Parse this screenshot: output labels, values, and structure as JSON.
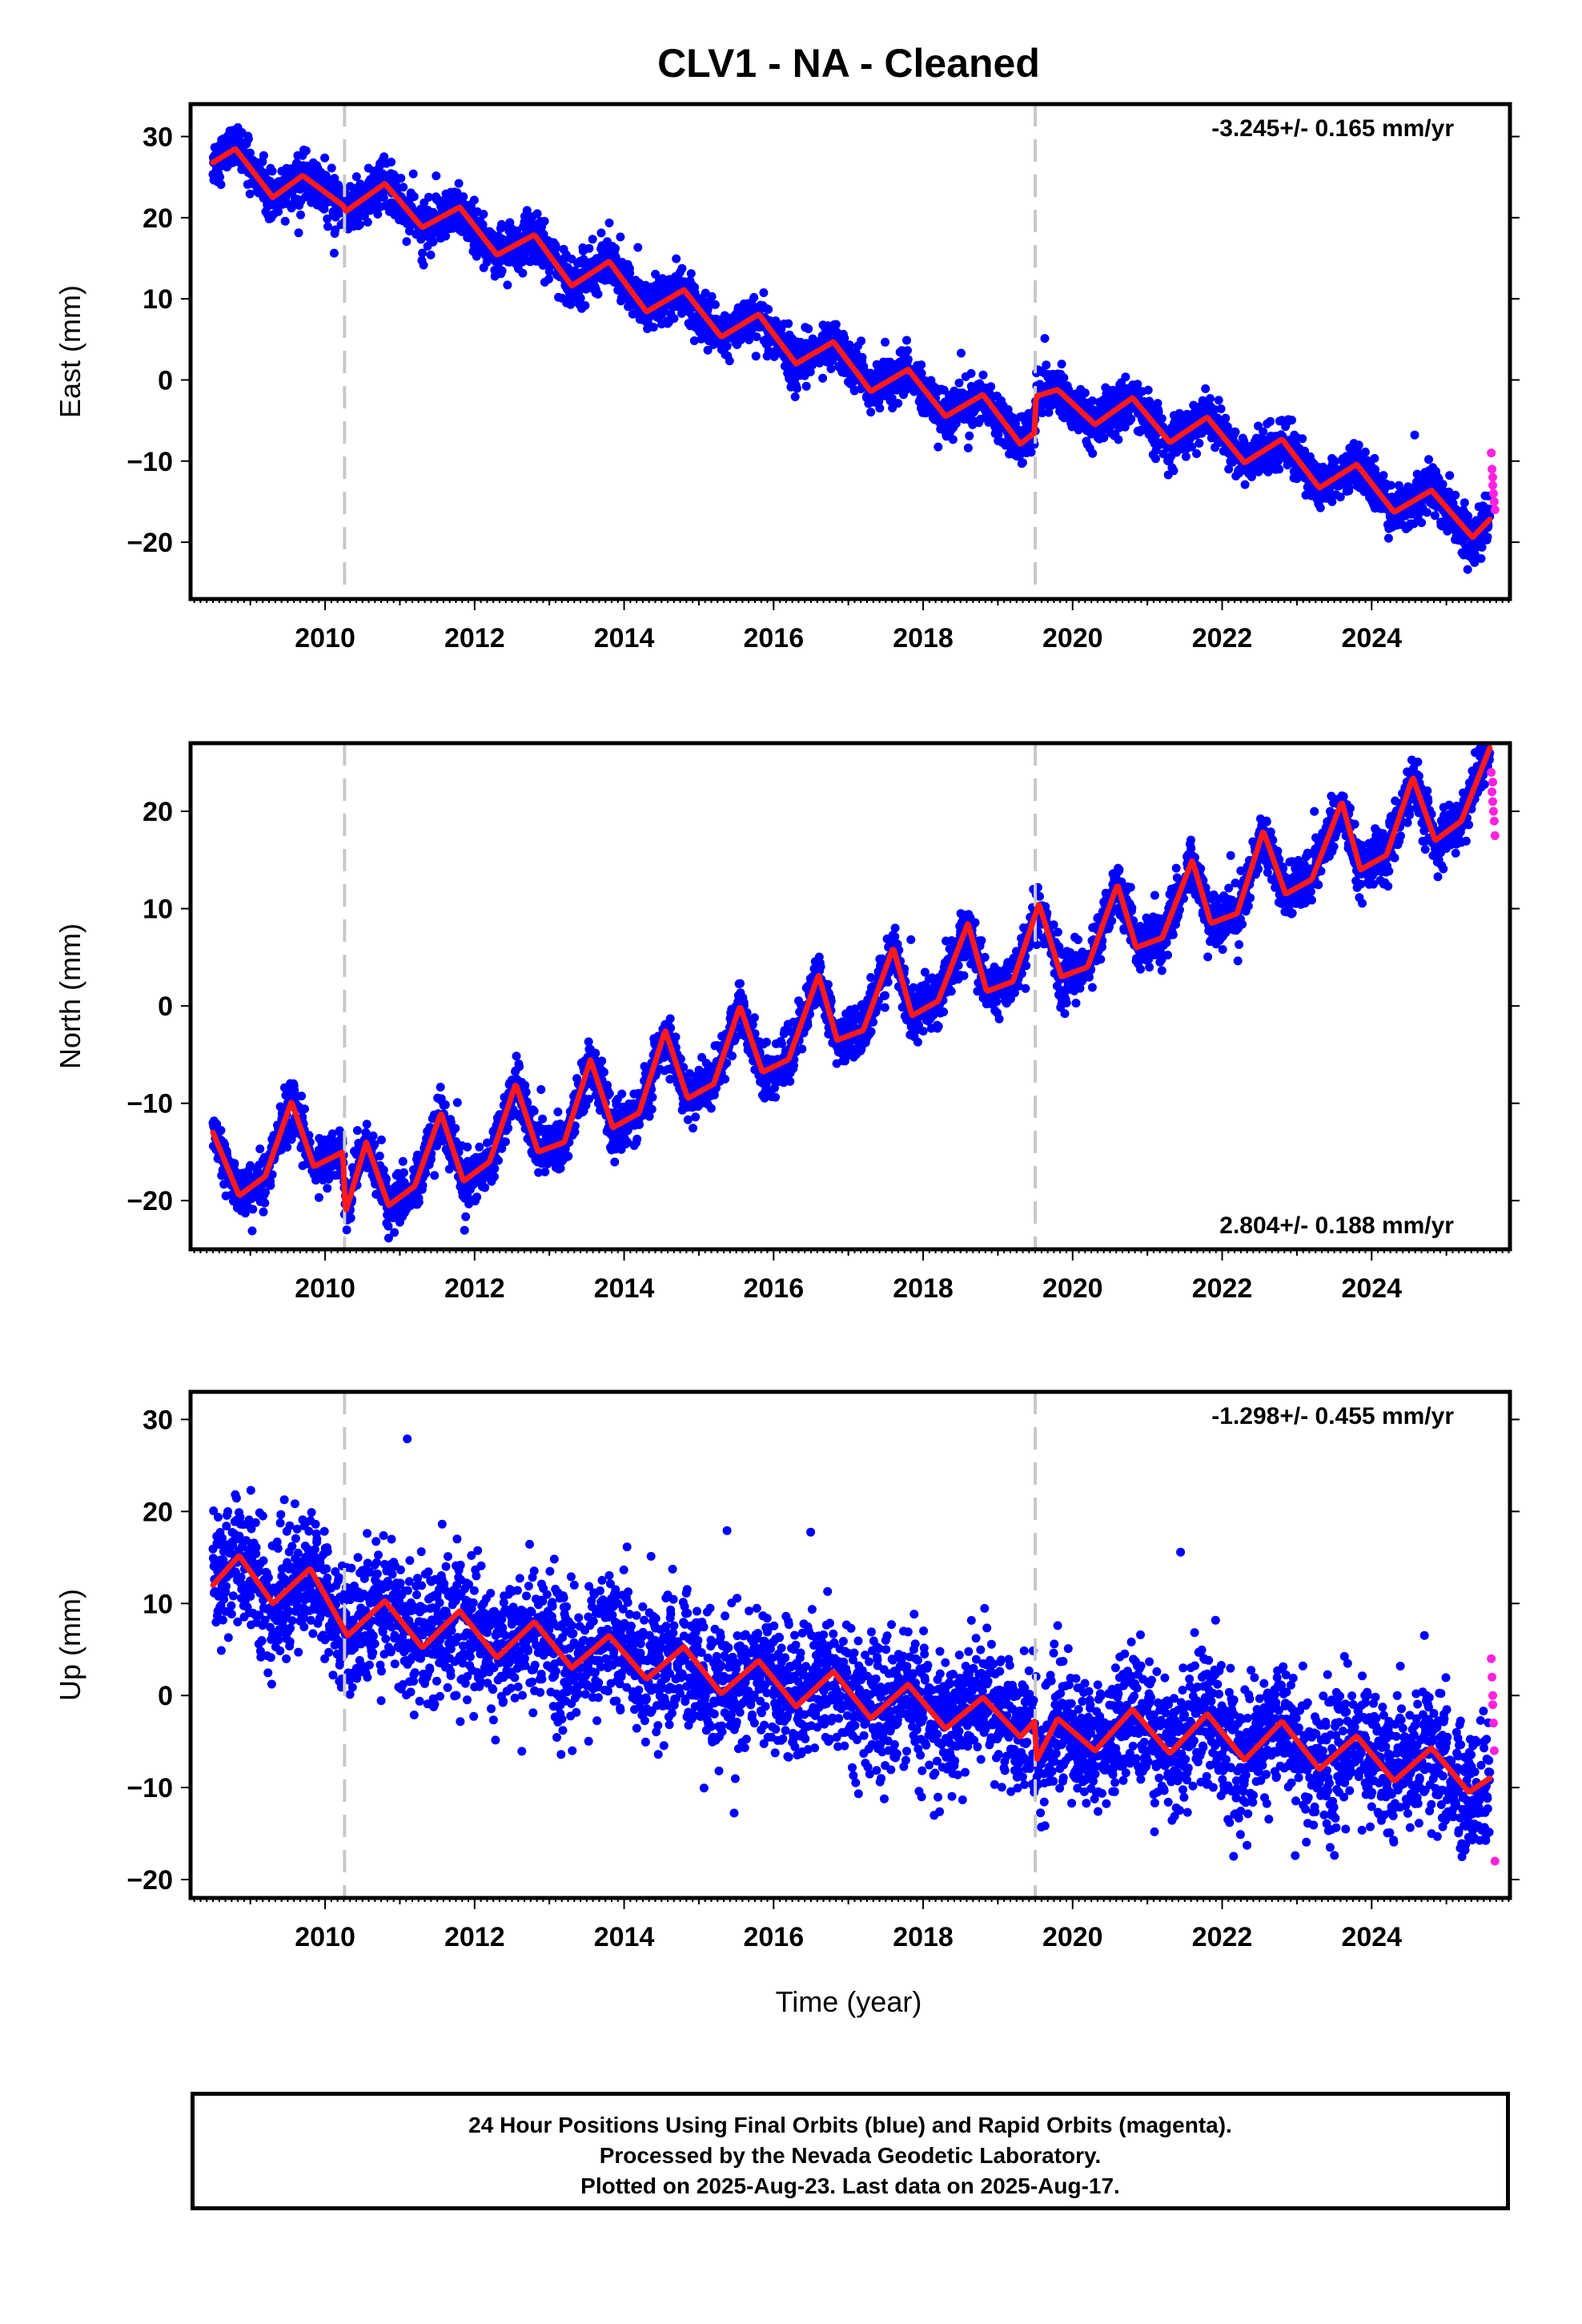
{
  "title": "CLV1  - NA - Cleaned",
  "xlabel": "Time (year)",
  "colors": {
    "final": "#0000ff",
    "rapid": "#ff22dd",
    "fit": "#ff1a1a",
    "event_line": "#c8c8c8"
  },
  "footer": {
    "line1": "24 Hour Positions Using Final Orbits (blue) and Rapid Orbits (magenta).",
    "line2": "Processed by the Nevada Geodetic Laboratory.",
    "line3": "Plotted on 2025-Aug-23. Last data on 2025-Aug-17."
  },
  "chart_data": [
    {
      "type": "scatter",
      "panel": "east",
      "title": "CLV1  - NA - Cleaned",
      "ylabel": "East (mm)",
      "xlabel": "",
      "xlim": [
        2008.2,
        2025.85
      ],
      "ylim": [
        -27,
        34
      ],
      "xticks": [
        2010,
        2012,
        2014,
        2016,
        2018,
        2020,
        2022,
        2024
      ],
      "yticks": [
        -20,
        -10,
        0,
        10,
        20,
        30
      ],
      "rate_text": "-3.245+/- 0.165 mm/yr",
      "rate_position": "top-right",
      "rate": -3.245,
      "event_lines": [
        2010.26,
        2019.5
      ],
      "series": [
        {
          "name": "Final Orbits (blue)",
          "start": 2008.5,
          "end": 2025.58,
          "start_value": 27.5,
          "end_value": -18,
          "seasonal_amplitude": 1.6,
          "scatter": 1.4,
          "offsets": [
            {
              "year": 2010.26,
              "value": -1.0
            },
            {
              "year": 2019.5,
              "value": 2.5
            }
          ]
        },
        {
          "name": "Rapid Orbits (magenta)",
          "values": [
            [
              2025.6,
              -9
            ],
            [
              2025.61,
              -11
            ],
            [
              2025.62,
              -13
            ],
            [
              2025.63,
              -14
            ],
            [
              2025.64,
              -15
            ],
            [
              2025.65,
              -16
            ],
            [
              2025.62,
              -12
            ]
          ]
        }
      ],
      "fit_points": [
        [
          2008.5,
          26.8
        ],
        [
          2008.8,
          28.5
        ],
        [
          2009.3,
          22.5
        ],
        [
          2009.7,
          25.2
        ],
        [
          2010.24,
          21.5
        ],
        [
          2010.28,
          20.8
        ],
        [
          2010.8,
          24.2
        ],
        [
          2011.3,
          18.8
        ],
        [
          2011.8,
          21.3
        ],
        [
          2012.3,
          15.4
        ],
        [
          2012.8,
          17.9
        ],
        [
          2013.3,
          11.6
        ],
        [
          2013.8,
          14.6
        ],
        [
          2014.3,
          8.4
        ],
        [
          2014.8,
          11.1
        ],
        [
          2015.3,
          5.3
        ],
        [
          2015.8,
          8.1
        ],
        [
          2016.3,
          2.0
        ],
        [
          2016.8,
          4.7
        ],
        [
          2017.3,
          -1.4
        ],
        [
          2017.8,
          1.3
        ],
        [
          2018.3,
          -4.5
        ],
        [
          2018.8,
          -1.8
        ],
        [
          2019.3,
          -7.9
        ],
        [
          2019.49,
          -6.5
        ],
        [
          2019.51,
          -2.0
        ],
        [
          2019.8,
          -1.2
        ],
        [
          2020.3,
          -5.5
        ],
        [
          2020.8,
          -2.2
        ],
        [
          2021.3,
          -7.7
        ],
        [
          2021.8,
          -4.6
        ],
        [
          2022.3,
          -10.2
        ],
        [
          2022.8,
          -7.3
        ],
        [
          2023.3,
          -13.3
        ],
        [
          2023.8,
          -10.4
        ],
        [
          2024.3,
          -16.3
        ],
        [
          2024.8,
          -13.6
        ],
        [
          2025.35,
          -19.4
        ],
        [
          2025.58,
          -17.2
        ]
      ]
    },
    {
      "type": "scatter",
      "panel": "north",
      "ylabel": "North (mm)",
      "xlabel": "",
      "xlim": [
        2008.2,
        2025.85
      ],
      "ylim": [
        -25,
        27
      ],
      "xticks": [
        2010,
        2012,
        2014,
        2016,
        2018,
        2020,
        2022,
        2024
      ],
      "yticks": [
        -20,
        -10,
        0,
        10,
        20
      ],
      "rate_text": "2.804+/- 0.188 mm/yr",
      "rate_position": "bottom-right",
      "rate": 2.804,
      "event_lines": [
        2010.26,
        2019.5
      ],
      "series": [
        {
          "name": "Final Orbits (blue)",
          "start": 2008.5,
          "end": 2025.58,
          "start_value": -16,
          "end_value": 22,
          "seasonal_amplitude": 4.5,
          "scatter": 1.3,
          "offsets": [
            {
              "year": 2010.26,
              "value": -2.0
            }
          ]
        },
        {
          "name": "Rapid Orbits (magenta)",
          "values": [
            [
              2025.6,
              24
            ],
            [
              2025.61,
              22
            ],
            [
              2025.62,
              21
            ],
            [
              2025.63,
              20
            ],
            [
              2025.64,
              19
            ],
            [
              2025.65,
              17.5
            ],
            [
              2025.62,
              23
            ]
          ]
        }
      ],
      "fit_points": [
        [
          2008.5,
          -13
        ],
        [
          2008.85,
          -19.5
        ],
        [
          2009.2,
          -17.5
        ],
        [
          2009.55,
          -9.8
        ],
        [
          2009.85,
          -16.5
        ],
        [
          2010.24,
          -15.0
        ],
        [
          2010.27,
          -21.3
        ],
        [
          2010.55,
          -14
        ],
        [
          2010.85,
          -20.5
        ],
        [
          2011.2,
          -18.5
        ],
        [
          2011.55,
          -11
        ],
        [
          2011.85,
          -18
        ],
        [
          2012.2,
          -16
        ],
        [
          2012.55,
          -8
        ],
        [
          2012.85,
          -15
        ],
        [
          2013.2,
          -14
        ],
        [
          2013.55,
          -5.5
        ],
        [
          2013.85,
          -12.5
        ],
        [
          2014.2,
          -11
        ],
        [
          2014.55,
          -2.5
        ],
        [
          2014.85,
          -9.5
        ],
        [
          2015.2,
          -8
        ],
        [
          2015.55,
          0
        ],
        [
          2015.85,
          -6.8
        ],
        [
          2016.2,
          -5.5
        ],
        [
          2016.6,
          3.2
        ],
        [
          2016.85,
          -3.5
        ],
        [
          2017.2,
          -2.5
        ],
        [
          2017.6,
          6
        ],
        [
          2017.85,
          -1
        ],
        [
          2018.2,
          0.5
        ],
        [
          2018.6,
          8.5
        ],
        [
          2018.85,
          1.5
        ],
        [
          2019.2,
          2.5
        ],
        [
          2019.55,
          10.5
        ],
        [
          2019.85,
          3
        ],
        [
          2020.2,
          4
        ],
        [
          2020.6,
          12.5
        ],
        [
          2020.85,
          6
        ],
        [
          2021.2,
          7
        ],
        [
          2021.6,
          15
        ],
        [
          2021.85,
          8.5
        ],
        [
          2022.2,
          9.5
        ],
        [
          2022.55,
          18
        ],
        [
          2022.85,
          11.5
        ],
        [
          2023.2,
          13
        ],
        [
          2023.6,
          21
        ],
        [
          2023.85,
          14
        ],
        [
          2024.2,
          15.5
        ],
        [
          2024.55,
          23.5
        ],
        [
          2024.85,
          17
        ],
        [
          2025.2,
          19
        ],
        [
          2025.58,
          26.5
        ]
      ]
    },
    {
      "type": "scatter",
      "panel": "up",
      "ylabel": "Up (mm)",
      "xlabel": "Time (year)",
      "xlim": [
        2008.2,
        2025.85
      ],
      "ylim": [
        -22,
        33
      ],
      "xticks": [
        2010,
        2012,
        2014,
        2016,
        2018,
        2020,
        2022,
        2024
      ],
      "yticks": [
        -20,
        -10,
        0,
        10,
        20,
        30
      ],
      "rate_text": "-1.298+/- 0.455 mm/yr",
      "rate_position": "top-right",
      "rate": -1.298,
      "event_lines": [
        2010.26,
        2019.5
      ],
      "series": [
        {
          "name": "Final Orbits (blue)",
          "start": 2008.5,
          "end": 2025.58,
          "start_value": 11.5,
          "end_value": -8.5,
          "seasonal_amplitude": 2.5,
          "scatter": 3.6,
          "offsets": []
        },
        {
          "name": "Rapid Orbits (magenta)",
          "values": [
            [
              2025.6,
              4
            ],
            [
              2025.61,
              2
            ],
            [
              2025.62,
              -1
            ],
            [
              2025.63,
              -3
            ],
            [
              2025.64,
              -6
            ],
            [
              2025.65,
              -18
            ],
            [
              2025.62,
              0
            ]
          ]
        }
      ],
      "fit_points": [
        [
          2008.5,
          12
        ],
        [
          2008.85,
          15.2
        ],
        [
          2009.3,
          10
        ],
        [
          2009.8,
          13.8
        ],
        [
          2010.3,
          6.5
        ],
        [
          2010.8,
          10.3
        ],
        [
          2011.3,
          5.2
        ],
        [
          2011.8,
          9.2
        ],
        [
          2012.3,
          4.1
        ],
        [
          2012.8,
          8
        ],
        [
          2013.3,
          3
        ],
        [
          2013.8,
          6.5
        ],
        [
          2014.3,
          1.8
        ],
        [
          2014.8,
          5.3
        ],
        [
          2015.3,
          0.2
        ],
        [
          2015.8,
          3.8
        ],
        [
          2016.3,
          -1.2
        ],
        [
          2016.8,
          2.6
        ],
        [
          2017.3,
          -2.5
        ],
        [
          2017.8,
          1.2
        ],
        [
          2018.3,
          -3.6
        ],
        [
          2018.8,
          -0.2
        ],
        [
          2019.3,
          -4.5
        ],
        [
          2019.49,
          -2.8
        ],
        [
          2019.52,
          -7
        ],
        [
          2019.8,
          -2.5
        ],
        [
          2020.3,
          -6
        ],
        [
          2020.8,
          -1.5
        ],
        [
          2021.3,
          -6.3
        ],
        [
          2021.8,
          -2
        ],
        [
          2022.3,
          -7
        ],
        [
          2022.8,
          -2.8
        ],
        [
          2023.3,
          -8
        ],
        [
          2023.8,
          -4.4
        ],
        [
          2024.3,
          -9.3
        ],
        [
          2024.8,
          -5.7
        ],
        [
          2025.3,
          -10.5
        ],
        [
          2025.58,
          -9
        ]
      ]
    }
  ]
}
